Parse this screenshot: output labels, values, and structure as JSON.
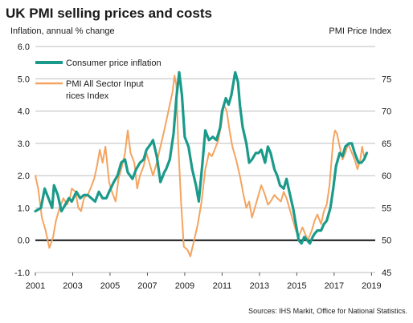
{
  "chart_data": {
    "type": "line",
    "title": "UK PMI selling prices and costs",
    "ylabel_left": "Inflation, annual % change",
    "ylabel_right": "PMI Price Index",
    "source": "Sources: IHS Markit, Office for National Statistics.",
    "x_ticks": [
      "2001",
      "2003",
      "2005",
      "2007",
      "2009",
      "2011",
      "2013",
      "2015",
      "2017",
      "2019"
    ],
    "x_range": [
      2001,
      2019.2
    ],
    "y_left": {
      "range": [
        -1.0,
        6.0
      ],
      "ticks": [
        "6.0",
        "5.0",
        "4.0",
        "3.0",
        "2.0",
        "1.0",
        "0.0",
        "-1.0"
      ]
    },
    "y_right": {
      "range": [
        45,
        80
      ],
      "ticks": [
        "75",
        "70",
        "65",
        "60",
        "55",
        "50",
        "45"
      ]
    },
    "grid": "horizontal",
    "zero_line": true,
    "legend": "top-left",
    "series": [
      {
        "name": "Consumer price inflation",
        "axis": "left",
        "color": "#1a9a8a",
        "points": [
          [
            2001.0,
            0.9
          ],
          [
            2001.3,
            1.0
          ],
          [
            2001.5,
            1.6
          ],
          [
            2001.7,
            1.3
          ],
          [
            2001.9,
            1.0
          ],
          [
            2002.0,
            1.7
          ],
          [
            2002.2,
            1.4
          ],
          [
            2002.4,
            0.9
          ],
          [
            2002.6,
            1.1
          ],
          [
            2002.8,
            1.3
          ],
          [
            2002.95,
            1.2
          ],
          [
            2003.2,
            1.5
          ],
          [
            2003.4,
            1.3
          ],
          [
            2003.6,
            1.4
          ],
          [
            2003.8,
            1.4
          ],
          [
            2004.0,
            1.3
          ],
          [
            2004.2,
            1.2
          ],
          [
            2004.4,
            1.5
          ],
          [
            2004.6,
            1.3
          ],
          [
            2004.8,
            1.3
          ],
          [
            2004.95,
            1.5
          ],
          [
            2005.2,
            1.8
          ],
          [
            2005.4,
            2.0
          ],
          [
            2005.6,
            2.4
          ],
          [
            2005.8,
            2.5
          ],
          [
            2005.95,
            2.1
          ],
          [
            2006.2,
            1.9
          ],
          [
            2006.4,
            2.2
          ],
          [
            2006.6,
            2.4
          ],
          [
            2006.8,
            2.5
          ],
          [
            2006.95,
            2.8
          ],
          [
            2007.2,
            3.0
          ],
          [
            2007.3,
            3.1
          ],
          [
            2007.5,
            2.6
          ],
          [
            2007.7,
            1.8
          ],
          [
            2007.9,
            2.1
          ],
          [
            2008.0,
            2.2
          ],
          [
            2008.2,
            2.5
          ],
          [
            2008.4,
            3.3
          ],
          [
            2008.55,
            4.4
          ],
          [
            2008.7,
            5.2
          ],
          [
            2008.85,
            4.5
          ],
          [
            2009.0,
            3.2
          ],
          [
            2009.2,
            2.9
          ],
          [
            2009.4,
            2.2
          ],
          [
            2009.6,
            1.7
          ],
          [
            2009.75,
            1.2
          ],
          [
            2009.95,
            2.4
          ],
          [
            2010.1,
            3.4
          ],
          [
            2010.3,
            3.1
          ],
          [
            2010.5,
            3.2
          ],
          [
            2010.7,
            3.1
          ],
          [
            2010.9,
            3.5
          ],
          [
            2011.0,
            4.0
          ],
          [
            2011.2,
            4.4
          ],
          [
            2011.35,
            4.2
          ],
          [
            2011.5,
            4.5
          ],
          [
            2011.7,
            5.2
          ],
          [
            2011.85,
            4.9
          ],
          [
            2011.95,
            4.2
          ],
          [
            2012.1,
            3.5
          ],
          [
            2012.3,
            3.0
          ],
          [
            2012.45,
            2.4
          ],
          [
            2012.6,
            2.5
          ],
          [
            2012.8,
            2.7
          ],
          [
            2012.95,
            2.7
          ],
          [
            2013.1,
            2.8
          ],
          [
            2013.3,
            2.4
          ],
          [
            2013.45,
            2.9
          ],
          [
            2013.6,
            2.7
          ],
          [
            2013.8,
            2.2
          ],
          [
            2013.95,
            2.0
          ],
          [
            2014.1,
            1.7
          ],
          [
            2014.3,
            1.6
          ],
          [
            2014.45,
            1.9
          ],
          [
            2014.6,
            1.5
          ],
          [
            2014.8,
            1.0
          ],
          [
            2014.95,
            0.5
          ],
          [
            2015.1,
            0.0
          ],
          [
            2015.25,
            -0.1
          ],
          [
            2015.4,
            0.1
          ],
          [
            2015.55,
            0.0
          ],
          [
            2015.7,
            -0.1
          ],
          [
            2015.85,
            0.1
          ],
          [
            2015.95,
            0.2
          ],
          [
            2016.1,
            0.3
          ],
          [
            2016.3,
            0.3
          ],
          [
            2016.45,
            0.5
          ],
          [
            2016.6,
            0.6
          ],
          [
            2016.8,
            1.0
          ],
          [
            2016.95,
            1.6
          ],
          [
            2017.1,
            2.3
          ],
          [
            2017.3,
            2.7
          ],
          [
            2017.45,
            2.6
          ],
          [
            2017.6,
            2.9
          ],
          [
            2017.8,
            3.0
          ],
          [
            2017.95,
            3.0
          ],
          [
            2018.1,
            2.7
          ],
          [
            2018.3,
            2.4
          ],
          [
            2018.45,
            2.4
          ],
          [
            2018.6,
            2.5
          ],
          [
            2018.75,
            2.7
          ]
        ]
      },
      {
        "name": "PMI All Sector Input Prices Index",
        "axis": "right",
        "color": "#f4a460",
        "points": [
          [
            2001.0,
            60.0
          ],
          [
            2001.15,
            58.0
          ],
          [
            2001.35,
            53.5
          ],
          [
            2001.55,
            51.5
          ],
          [
            2001.75,
            48.8
          ],
          [
            2001.95,
            50.5
          ],
          [
            2002.1,
            53.0
          ],
          [
            2002.3,
            55.0
          ],
          [
            2002.5,
            56.5
          ],
          [
            2002.7,
            55.5
          ],
          [
            2002.85,
            56.5
          ],
          [
            2002.95,
            58.0
          ],
          [
            2003.15,
            57.5
          ],
          [
            2003.3,
            55.0
          ],
          [
            2003.45,
            54.5
          ],
          [
            2003.6,
            56.5
          ],
          [
            2003.8,
            57.0
          ],
          [
            2003.95,
            58.0
          ],
          [
            2004.15,
            59.5
          ],
          [
            2004.3,
            61.5
          ],
          [
            2004.45,
            64.0
          ],
          [
            2004.6,
            62.0
          ],
          [
            2004.75,
            64.5
          ],
          [
            2004.95,
            59.0
          ],
          [
            2005.1,
            57.5
          ],
          [
            2005.3,
            56.0
          ],
          [
            2005.45,
            59.5
          ],
          [
            2005.6,
            61.0
          ],
          [
            2005.8,
            63.5
          ],
          [
            2005.95,
            67.0
          ],
          [
            2006.1,
            63.5
          ],
          [
            2006.3,
            62.0
          ],
          [
            2006.45,
            58.0
          ],
          [
            2006.6,
            60.0
          ],
          [
            2006.8,
            61.5
          ],
          [
            2006.95,
            63.5
          ],
          [
            2007.1,
            62.0
          ],
          [
            2007.3,
            60.0
          ],
          [
            2007.5,
            62.0
          ],
          [
            2007.7,
            64.5
          ],
          [
            2007.9,
            67.0
          ],
          [
            2008.05,
            69.0
          ],
          [
            2008.2,
            71.0
          ],
          [
            2008.35,
            73.0
          ],
          [
            2008.45,
            75.5
          ],
          [
            2008.55,
            74.0
          ],
          [
            2008.65,
            65.0
          ],
          [
            2008.8,
            56.0
          ],
          [
            2008.95,
            49.0
          ],
          [
            2009.15,
            48.5
          ],
          [
            2009.3,
            47.5
          ],
          [
            2009.5,
            50.0
          ],
          [
            2009.7,
            52.5
          ],
          [
            2009.9,
            56.0
          ],
          [
            2010.1,
            61.0
          ],
          [
            2010.3,
            63.5
          ],
          [
            2010.45,
            63.0
          ],
          [
            2010.6,
            64.0
          ],
          [
            2010.8,
            65.5
          ],
          [
            2010.95,
            68.0
          ],
          [
            2011.1,
            71.0
          ],
          [
            2011.25,
            70.0
          ],
          [
            2011.4,
            67.0
          ],
          [
            2011.55,
            64.5
          ],
          [
            2011.75,
            62.5
          ],
          [
            2011.95,
            60.0
          ],
          [
            2012.15,
            57.0
          ],
          [
            2012.3,
            55.0
          ],
          [
            2012.45,
            56.0
          ],
          [
            2012.6,
            53.5
          ],
          [
            2012.8,
            55.5
          ],
          [
            2012.95,
            57.0
          ],
          [
            2013.1,
            58.5
          ],
          [
            2013.3,
            57.0
          ],
          [
            2013.45,
            55.5
          ],
          [
            2013.6,
            56.0
          ],
          [
            2013.8,
            57.0
          ],
          [
            2013.95,
            56.5
          ],
          [
            2014.15,
            56.0
          ],
          [
            2014.3,
            57.5
          ],
          [
            2014.45,
            56.5
          ],
          [
            2014.6,
            55.0
          ],
          [
            2014.8,
            53.0
          ],
          [
            2014.95,
            51.5
          ],
          [
            2015.1,
            50.5
          ],
          [
            2015.3,
            52.0
          ],
          [
            2015.45,
            51.0
          ],
          [
            2015.6,
            50.0
          ],
          [
            2015.8,
            51.5
          ],
          [
            2015.95,
            53.0
          ],
          [
            2016.1,
            54.0
          ],
          [
            2016.3,
            52.5
          ],
          [
            2016.45,
            54.5
          ],
          [
            2016.6,
            55.5
          ],
          [
            2016.75,
            58.5
          ],
          [
            2016.85,
            62.0
          ],
          [
            2016.95,
            65.5
          ],
          [
            2017.05,
            67.0
          ],
          [
            2017.15,
            66.5
          ],
          [
            2017.3,
            64.5
          ],
          [
            2017.45,
            62.5
          ],
          [
            2017.6,
            63.5
          ],
          [
            2017.75,
            65.0
          ],
          [
            2017.95,
            63.5
          ],
          [
            2018.1,
            62.5
          ],
          [
            2018.25,
            61.0
          ],
          [
            2018.4,
            62.5
          ],
          [
            2018.5,
            64.5
          ],
          [
            2018.6,
            63.0
          ],
          [
            2018.75,
            63.5
          ]
        ]
      }
    ]
  },
  "colors": {
    "cpi": "#1a9a8a",
    "pmi": "#f4a460",
    "grid": "#bdbdbd",
    "zero": "#111111",
    "text": "#1a1a1a"
  }
}
